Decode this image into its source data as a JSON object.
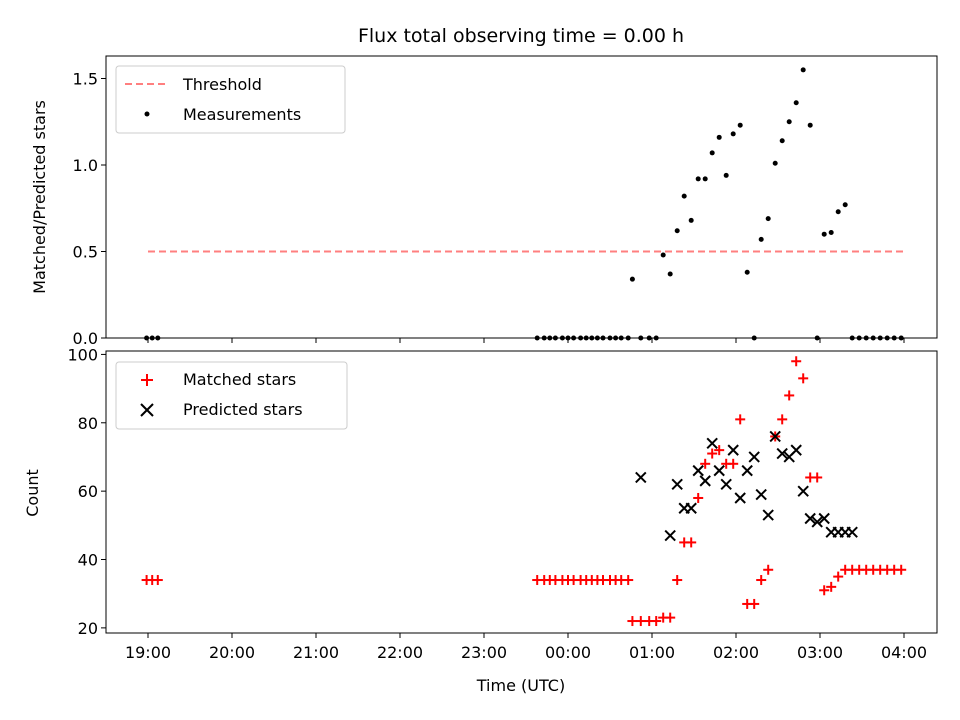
{
  "chart_data": [
    {
      "type": "scatter",
      "title": "Flux total observing time = 0.00 h",
      "ylabel": "Matched/Predicted stars",
      "xlabel": "",
      "ylim": [
        0,
        1.63
      ],
      "y_ticks": [
        0.0,
        0.5,
        1.0,
        1.5
      ],
      "y_tick_labels": [
        "0.0",
        "0.5",
        "1.0",
        "1.5"
      ],
      "legend_position": "top-left",
      "threshold": {
        "name": "Threshold",
        "value": 0.5,
        "x_range": [
          "19:00",
          "04:00"
        ],
        "color": "#ff7f7f",
        "style": "dashed"
      },
      "series": [
        {
          "name": "Measurements",
          "color": "#000000",
          "marker": "dot",
          "x": [
            "18:59",
            "19:03",
            "19:07",
            "23:38",
            "23:43",
            "23:47",
            "23:51",
            "23:56",
            "00:00",
            "00:04",
            "00:09",
            "00:13",
            "00:17",
            "00:21",
            "00:25",
            "00:30",
            "00:34",
            "00:38",
            "00:43",
            "00:46",
            "00:52",
            "00:58",
            "01:03",
            "01:08",
            "01:13",
            "01:18",
            "01:23",
            "01:28",
            "01:33",
            "01:38",
            "01:43",
            "01:48",
            "01:53",
            "01:58",
            "02:03",
            "02:08",
            "02:13",
            "02:18",
            "02:23",
            "02:28",
            "02:33",
            "02:38",
            "02:43",
            "02:48",
            "02:53",
            "02:58",
            "03:03",
            "03:08",
            "03:13",
            "03:18",
            "03:23",
            "03:28",
            "03:33",
            "03:38",
            "03:43",
            "03:48",
            "03:53",
            "03:58"
          ],
          "y": [
            0,
            0,
            0,
            0,
            0,
            0,
            0,
            0,
            0,
            0,
            0,
            0,
            0,
            0,
            0,
            0,
            0,
            0,
            0,
            0.34,
            0,
            0,
            0,
            0.48,
            0.37,
            0.62,
            0.82,
            0.68,
            0.92,
            0.92,
            1.07,
            1.16,
            0.94,
            1.18,
            1.23,
            0.38,
            0,
            0.57,
            0.69,
            1.01,
            1.14,
            1.25,
            1.36,
            1.55,
            1.23,
            0,
            0.6,
            0.61,
            0.73,
            0.77,
            0,
            0,
            0,
            0,
            0,
            0,
            0,
            0
          ]
        }
      ]
    },
    {
      "type": "scatter",
      "title": "",
      "ylabel": "Count",
      "xlabel": "Time (UTC)",
      "ylim": [
        18.5,
        101
      ],
      "y_ticks": [
        20,
        40,
        60,
        80,
        100
      ],
      "y_tick_labels": [
        "20",
        "40",
        "60",
        "80",
        "100"
      ],
      "x_tick_labels": [
        "19:00",
        "20:00",
        "21:00",
        "22:00",
        "23:00",
        "00:00",
        "01:00",
        "02:00",
        "03:00",
        "04:00"
      ],
      "legend_position": "top-left",
      "series": [
        {
          "name": "Matched stars",
          "color": "#ff0000",
          "marker": "plus",
          "x": [
            "18:59",
            "19:03",
            "19:07",
            "23:38",
            "23:43",
            "23:47",
            "23:51",
            "23:56",
            "00:00",
            "00:04",
            "00:09",
            "00:13",
            "00:17",
            "00:21",
            "00:25",
            "00:30",
            "00:34",
            "00:38",
            "00:43",
            "00:46",
            "00:52",
            "00:58",
            "01:03",
            "01:08",
            "01:13",
            "01:18",
            "01:23",
            "01:28",
            "01:33",
            "01:38",
            "01:43",
            "01:48",
            "01:53",
            "01:58",
            "02:03",
            "02:08",
            "02:13",
            "02:18",
            "02:23",
            "02:28",
            "02:33",
            "02:38",
            "02:43",
            "02:48",
            "02:53",
            "02:58",
            "03:03",
            "03:08",
            "03:13",
            "03:18",
            "03:23",
            "03:28",
            "03:33",
            "03:38",
            "03:43",
            "03:48",
            "03:53",
            "03:58"
          ],
          "y": [
            34,
            34,
            34,
            34,
            34,
            34,
            34,
            34,
            34,
            34,
            34,
            34,
            34,
            34,
            34,
            34,
            34,
            34,
            34,
            22,
            22,
            22,
            22,
            23,
            23,
            34,
            45,
            45,
            58,
            68,
            71,
            72,
            68,
            68,
            81,
            27,
            27,
            34,
            37,
            76,
            81,
            88,
            98,
            93,
            64,
            64,
            31,
            32,
            35,
            37,
            37,
            37,
            37,
            37,
            37,
            37,
            37,
            37
          ]
        },
        {
          "name": "Predicted stars",
          "color": "#000000",
          "marker": "x",
          "x": [
            "00:52",
            "01:13",
            "01:18",
            "01:23",
            "01:28",
            "01:33",
            "01:38",
            "01:43",
            "01:48",
            "01:53",
            "01:58",
            "02:03",
            "02:08",
            "02:13",
            "02:18",
            "02:23",
            "02:28",
            "02:33",
            "02:38",
            "02:43",
            "02:48",
            "02:53",
            "02:58",
            "03:03",
            "03:08",
            "03:13",
            "03:18",
            "03:23"
          ],
          "y": [
            64,
            47,
            62,
            55,
            55,
            66,
            63,
            74,
            66,
            62,
            72,
            58,
            66,
            70,
            59,
            53,
            76,
            71,
            70,
            72,
            60,
            52,
            51,
            52,
            48,
            48,
            48,
            48
          ]
        }
      ]
    }
  ]
}
